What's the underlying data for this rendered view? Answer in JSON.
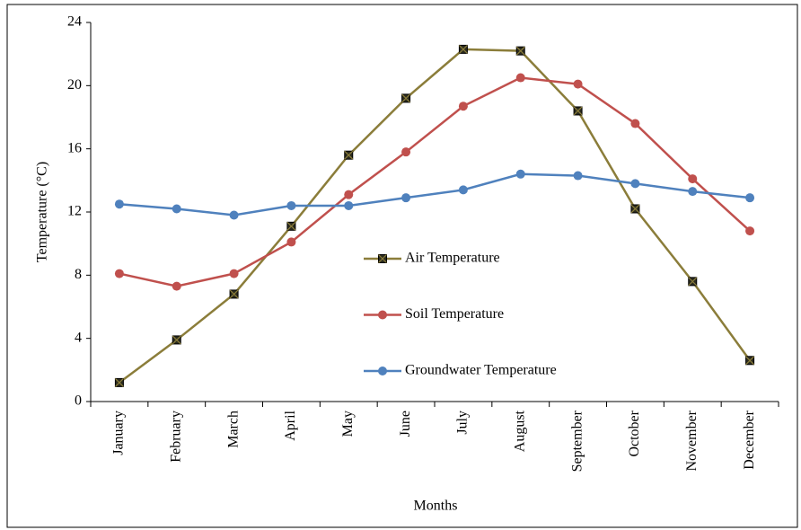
{
  "chart_data": {
    "type": "line",
    "x_label": "Months",
    "y_label": "Temperature (°C)",
    "categories": [
      "January",
      "February",
      "March",
      "April",
      "May",
      "June",
      "July",
      "August",
      "September",
      "October",
      "November",
      "December"
    ],
    "series": [
      {
        "name": "Air Temperature",
        "color": "#8b7d3a",
        "marker": "square-x",
        "values": [
          1.2,
          3.9,
          6.8,
          11.1,
          15.6,
          19.2,
          22.3,
          22.2,
          18.4,
          12.2,
          7.6,
          2.6
        ]
      },
      {
        "name": "Soil Temperature",
        "color": "#c0504d",
        "marker": "circle",
        "values": [
          8.1,
          7.3,
          8.1,
          10.1,
          13.1,
          15.8,
          18.7,
          20.5,
          20.1,
          17.6,
          14.1,
          10.8
        ]
      },
      {
        "name": "Groundwater Temperature",
        "color": "#4f81bd",
        "marker": "circle",
        "values": [
          12.5,
          12.2,
          11.8,
          12.4,
          12.4,
          12.9,
          13.4,
          14.4,
          14.3,
          13.8,
          13.3,
          12.9
        ]
      }
    ],
    "ylim": [
      0,
      24
    ],
    "yticks": [
      0,
      4,
      8,
      12,
      16,
      20,
      24
    ],
    "grid": false,
    "legend": "center"
  }
}
